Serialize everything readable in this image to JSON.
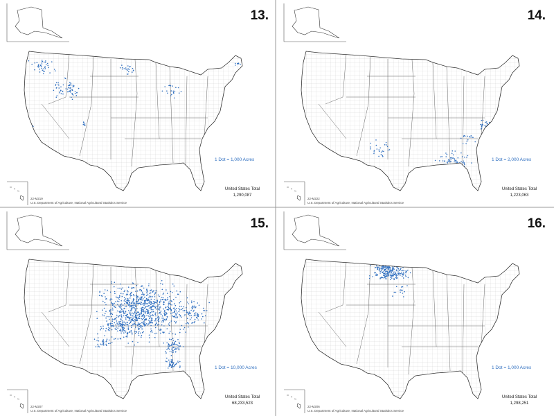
{
  "panels": [
    {
      "number": "13.",
      "legend": "1 Dot = 1,000 Acres",
      "total_label": "United States Total",
      "total": "1,290,087",
      "code": "22-M219",
      "source": "U.S. Department of Agriculture, National Agricultural Statistics Service"
    },
    {
      "number": "14.",
      "legend": "1 Dot = 2,000 Acres",
      "total_label": "United States Total",
      "total": "1,223,063",
      "code": "22-M222",
      "source": "U.S. Department of Agriculture, National Agricultural Statistics Service"
    },
    {
      "number": "15.",
      "legend": "1 Dot = 10,000 Acres",
      "total_label": "United States Total",
      "total": "68,233,523",
      "code": "22-M207",
      "source": "U.S. Department of Agriculture, National Agricultural Statistics Service"
    },
    {
      "number": "16.",
      "legend": "1 Dot = 1,000 Acres",
      "total_label": "United States Total",
      "total": "1,298,251",
      "code": "22-M206",
      "source": "U.S. Department of Agriculture, National Agricultural Statistics Service"
    }
  ]
}
